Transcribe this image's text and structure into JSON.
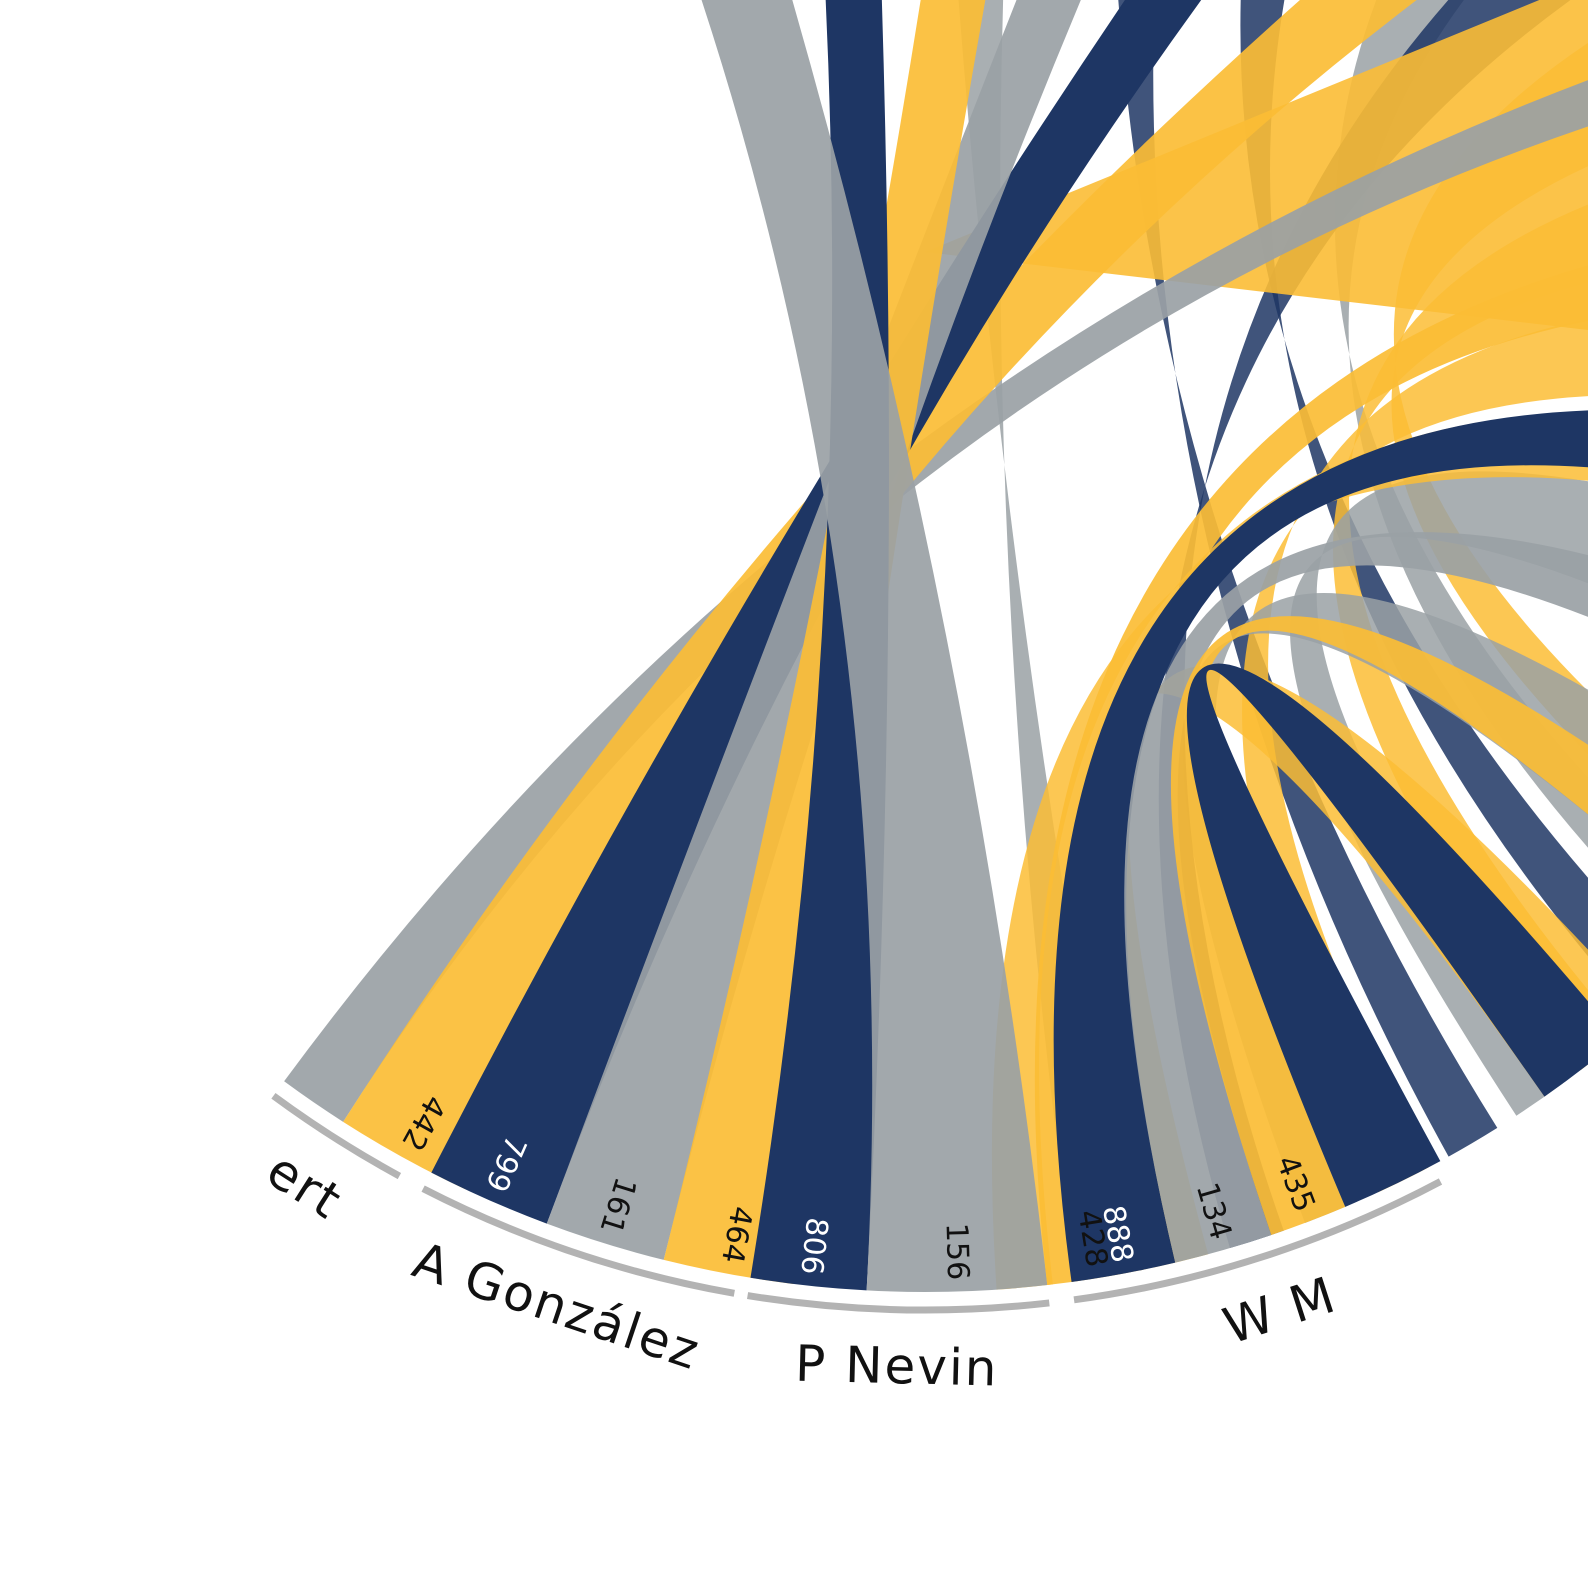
{
  "chart_data": {
    "type": "chord",
    "colors": {
      "navy": "#1e3664",
      "grey": "#9aa1a5",
      "gold": "#fbbd35"
    },
    "groups": [
      {
        "name": "ert",
        "values": [
          {
            "value": "",
            "color": "grey"
          },
          {
            "value": "442",
            "color": "gold"
          }
        ]
      },
      {
        "name": "A González",
        "values": [
          {
            "value": "799",
            "color": "navy"
          },
          {
            "value": "161",
            "color": "grey"
          },
          {
            "value": "464",
            "color": "gold"
          }
        ]
      },
      {
        "name": "P Nevin",
        "values": [
          {
            "value": "806",
            "color": "navy"
          },
          {
            "value": "156",
            "color": "grey"
          },
          {
            "value": "428",
            "color": "gold"
          }
        ]
      },
      {
        "name": "W M",
        "values": [
          {
            "value": "888",
            "color": "navy"
          },
          {
            "value": "134",
            "color": "grey"
          },
          {
            "value": "435",
            "color": "gold"
          },
          {
            "value": "",
            "color": "navy"
          }
        ]
      }
    ]
  }
}
